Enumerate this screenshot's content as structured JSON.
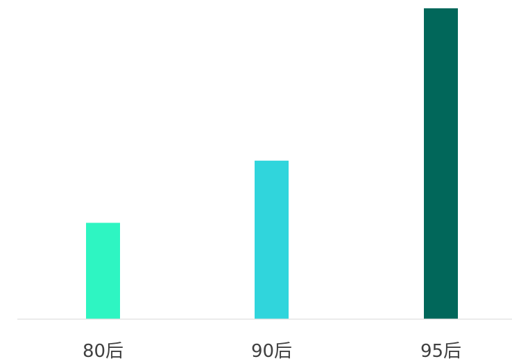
{
  "chart_data": {
    "type": "bar",
    "categories": [
      "80后",
      "90后",
      "95后"
    ],
    "values": [
      31,
      51,
      100
    ],
    "colors": [
      "#2ef5c2",
      "#30d5dc",
      "#01675a"
    ],
    "title": "",
    "xlabel": "",
    "ylabel": "",
    "ylim": [
      0,
      100
    ],
    "grid": false,
    "legend": "none",
    "axis_line_color": "#e3e3e3",
    "label_color": "#404040"
  }
}
